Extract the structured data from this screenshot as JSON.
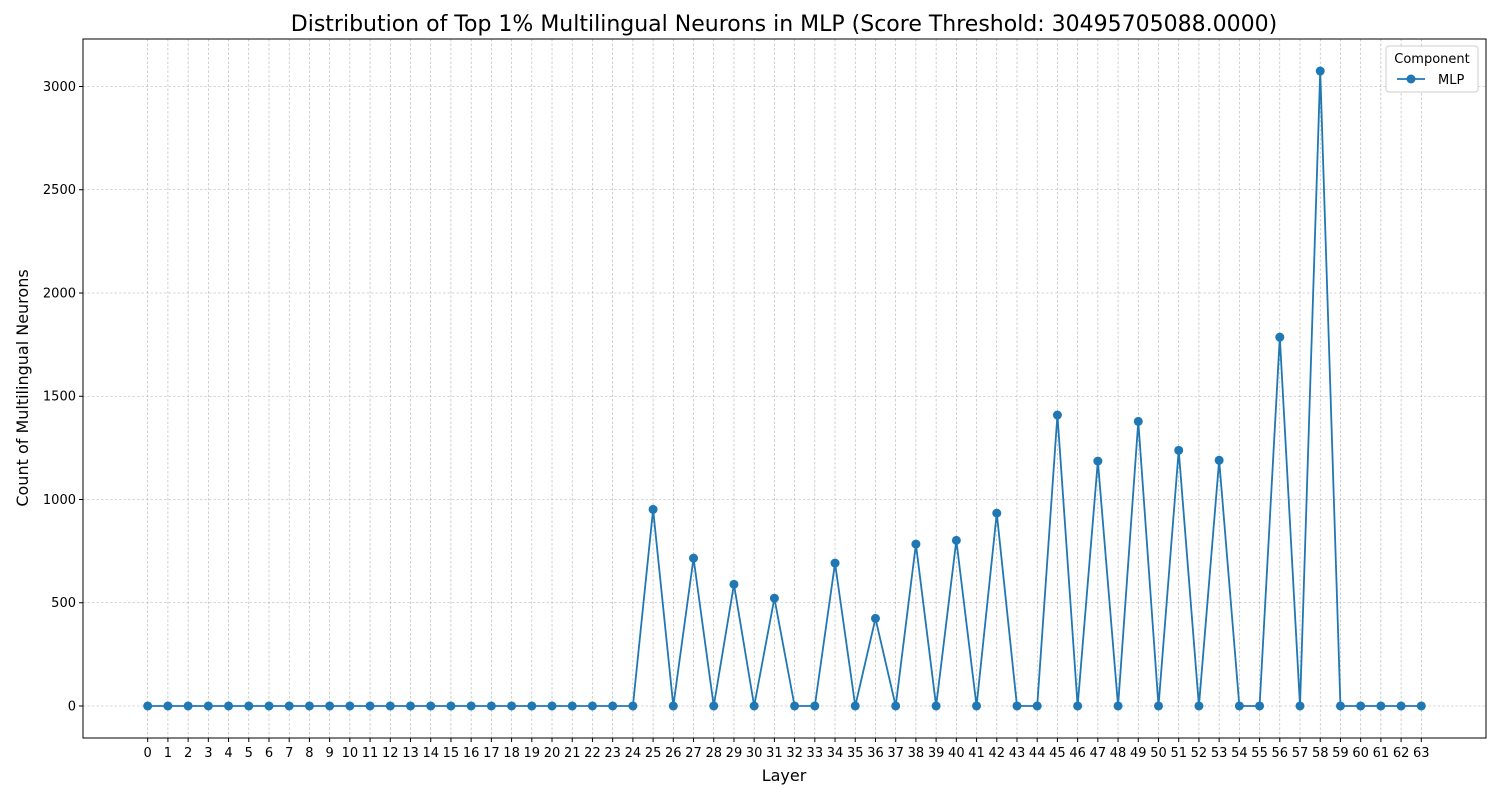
{
  "chart_data": {
    "type": "line",
    "title": "Distribution of Top 1% Multilingual Neurons in MLP (Score Threshold: 30495705088.0000)",
    "xlabel": "Layer",
    "ylabel": "Count of Multilingual Neurons",
    "x": [
      0,
      1,
      2,
      3,
      4,
      5,
      6,
      7,
      8,
      9,
      10,
      11,
      12,
      13,
      14,
      15,
      16,
      17,
      18,
      19,
      20,
      21,
      22,
      23,
      24,
      25,
      26,
      27,
      28,
      29,
      30,
      31,
      32,
      33,
      34,
      35,
      36,
      37,
      38,
      39,
      40,
      41,
      42,
      43,
      44,
      45,
      46,
      47,
      48,
      49,
      50,
      51,
      52,
      53,
      54,
      55,
      56,
      57,
      58,
      59,
      60,
      61,
      62,
      63
    ],
    "series": [
      {
        "name": "MLP",
        "color": "#1f77b4",
        "marker": "circle",
        "values": [
          0,
          0,
          0,
          0,
          0,
          0,
          0,
          0,
          0,
          0,
          0,
          0,
          0,
          0,
          0,
          0,
          0,
          0,
          0,
          0,
          0,
          0,
          0,
          0,
          0,
          952,
          0,
          716,
          0,
          589,
          0,
          522,
          0,
          0,
          692,
          0,
          424,
          0,
          784,
          0,
          802,
          0,
          934,
          0,
          0,
          1409,
          0,
          1186,
          0,
          1378,
          0,
          1238,
          0,
          1190,
          0,
          0,
          1786,
          0,
          3075,
          0,
          0,
          0,
          0,
          0
        ]
      }
    ],
    "yticks": [
      0,
      500,
      1000,
      1500,
      2000,
      2500,
      3000
    ],
    "ylim": [
      -155,
      3230
    ],
    "xlim": [
      -3.2,
      66.2
    ],
    "grid": true,
    "legend": {
      "title": "Component",
      "placement": "top-right"
    }
  }
}
